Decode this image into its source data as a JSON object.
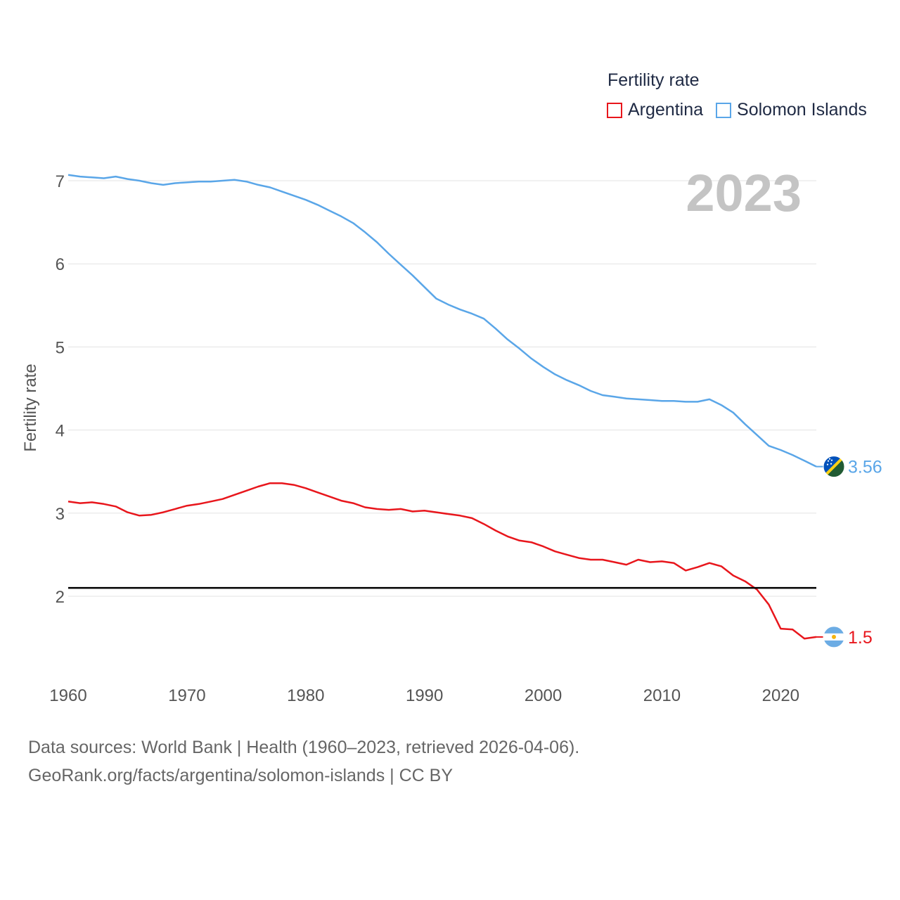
{
  "legend": {
    "title": "Fertility rate",
    "items": [
      {
        "label": "Argentina",
        "color": "#e8161c"
      },
      {
        "label": "Solomon Islands",
        "color": "#5aa6e8"
      }
    ]
  },
  "footer": {
    "line1": "Data sources: World Bank | Health (1960–2023, retrieved 2026-04-06).",
    "line2": "GeoRank.org/facts/argentina/solomon-islands | CC BY"
  },
  "chart_data": {
    "type": "line",
    "title": "Fertility rate",
    "year_watermark": "2023",
    "ylabel": "Fertility rate",
    "xlabel": "",
    "xlim": [
      1960,
      2023
    ],
    "ylim": [
      1.0,
      7.3
    ],
    "x_ticks": [
      1960,
      1970,
      1980,
      1990,
      2000,
      2010,
      2020
    ],
    "y_ticks": [
      2,
      3,
      4,
      5,
      6,
      7
    ],
    "reference_line": {
      "value": 2.1,
      "color": "#000000"
    },
    "x": [
      1960,
      1961,
      1962,
      1963,
      1964,
      1965,
      1966,
      1967,
      1968,
      1969,
      1970,
      1971,
      1972,
      1973,
      1974,
      1975,
      1976,
      1977,
      1978,
      1979,
      1980,
      1981,
      1982,
      1983,
      1984,
      1985,
      1986,
      1987,
      1988,
      1989,
      1990,
      1991,
      1992,
      1993,
      1994,
      1995,
      1996,
      1997,
      1998,
      1999,
      2000,
      2001,
      2002,
      2003,
      2004,
      2005,
      2006,
      2007,
      2008,
      2009,
      2010,
      2011,
      2012,
      2013,
      2014,
      2015,
      2016,
      2017,
      2018,
      2019,
      2020,
      2021,
      2022,
      2023
    ],
    "series": [
      {
        "name": "Argentina",
        "color": "#e8161c",
        "end_label": "1.5",
        "values": [
          3.14,
          3.12,
          3.13,
          3.11,
          3.08,
          3.01,
          2.97,
          2.98,
          3.01,
          3.05,
          3.09,
          3.11,
          3.14,
          3.17,
          3.22,
          3.27,
          3.32,
          3.36,
          3.36,
          3.34,
          3.3,
          3.25,
          3.2,
          3.15,
          3.12,
          3.07,
          3.05,
          3.04,
          3.05,
          3.02,
          3.03,
          3.01,
          2.99,
          2.97,
          2.94,
          2.87,
          2.79,
          2.72,
          2.67,
          2.65,
          2.6,
          2.54,
          2.5,
          2.46,
          2.44,
          2.44,
          2.41,
          2.38,
          2.44,
          2.41,
          2.42,
          2.4,
          2.31,
          2.35,
          2.4,
          2.36,
          2.25,
          2.18,
          2.08,
          1.9,
          1.61,
          1.6,
          1.49,
          1.51
        ]
      },
      {
        "name": "Solomon Islands",
        "color": "#5aa6e8",
        "end_label": "3.56",
        "values": [
          7.07,
          7.05,
          7.04,
          7.03,
          7.05,
          7.02,
          7.0,
          6.97,
          6.95,
          6.97,
          6.98,
          6.99,
          6.99,
          7.0,
          7.01,
          6.99,
          6.95,
          6.92,
          6.87,
          6.82,
          6.77,
          6.71,
          6.64,
          6.57,
          6.49,
          6.38,
          6.26,
          6.12,
          5.99,
          5.86,
          5.72,
          5.58,
          5.51,
          5.45,
          5.4,
          5.34,
          5.22,
          5.09,
          4.98,
          4.86,
          4.76,
          4.67,
          4.6,
          4.54,
          4.47,
          4.42,
          4.4,
          4.38,
          4.37,
          4.36,
          4.35,
          4.35,
          4.34,
          4.34,
          4.37,
          4.3,
          4.21,
          4.07,
          3.94,
          3.81,
          3.76,
          3.7,
          3.63,
          3.56
        ]
      }
    ]
  }
}
